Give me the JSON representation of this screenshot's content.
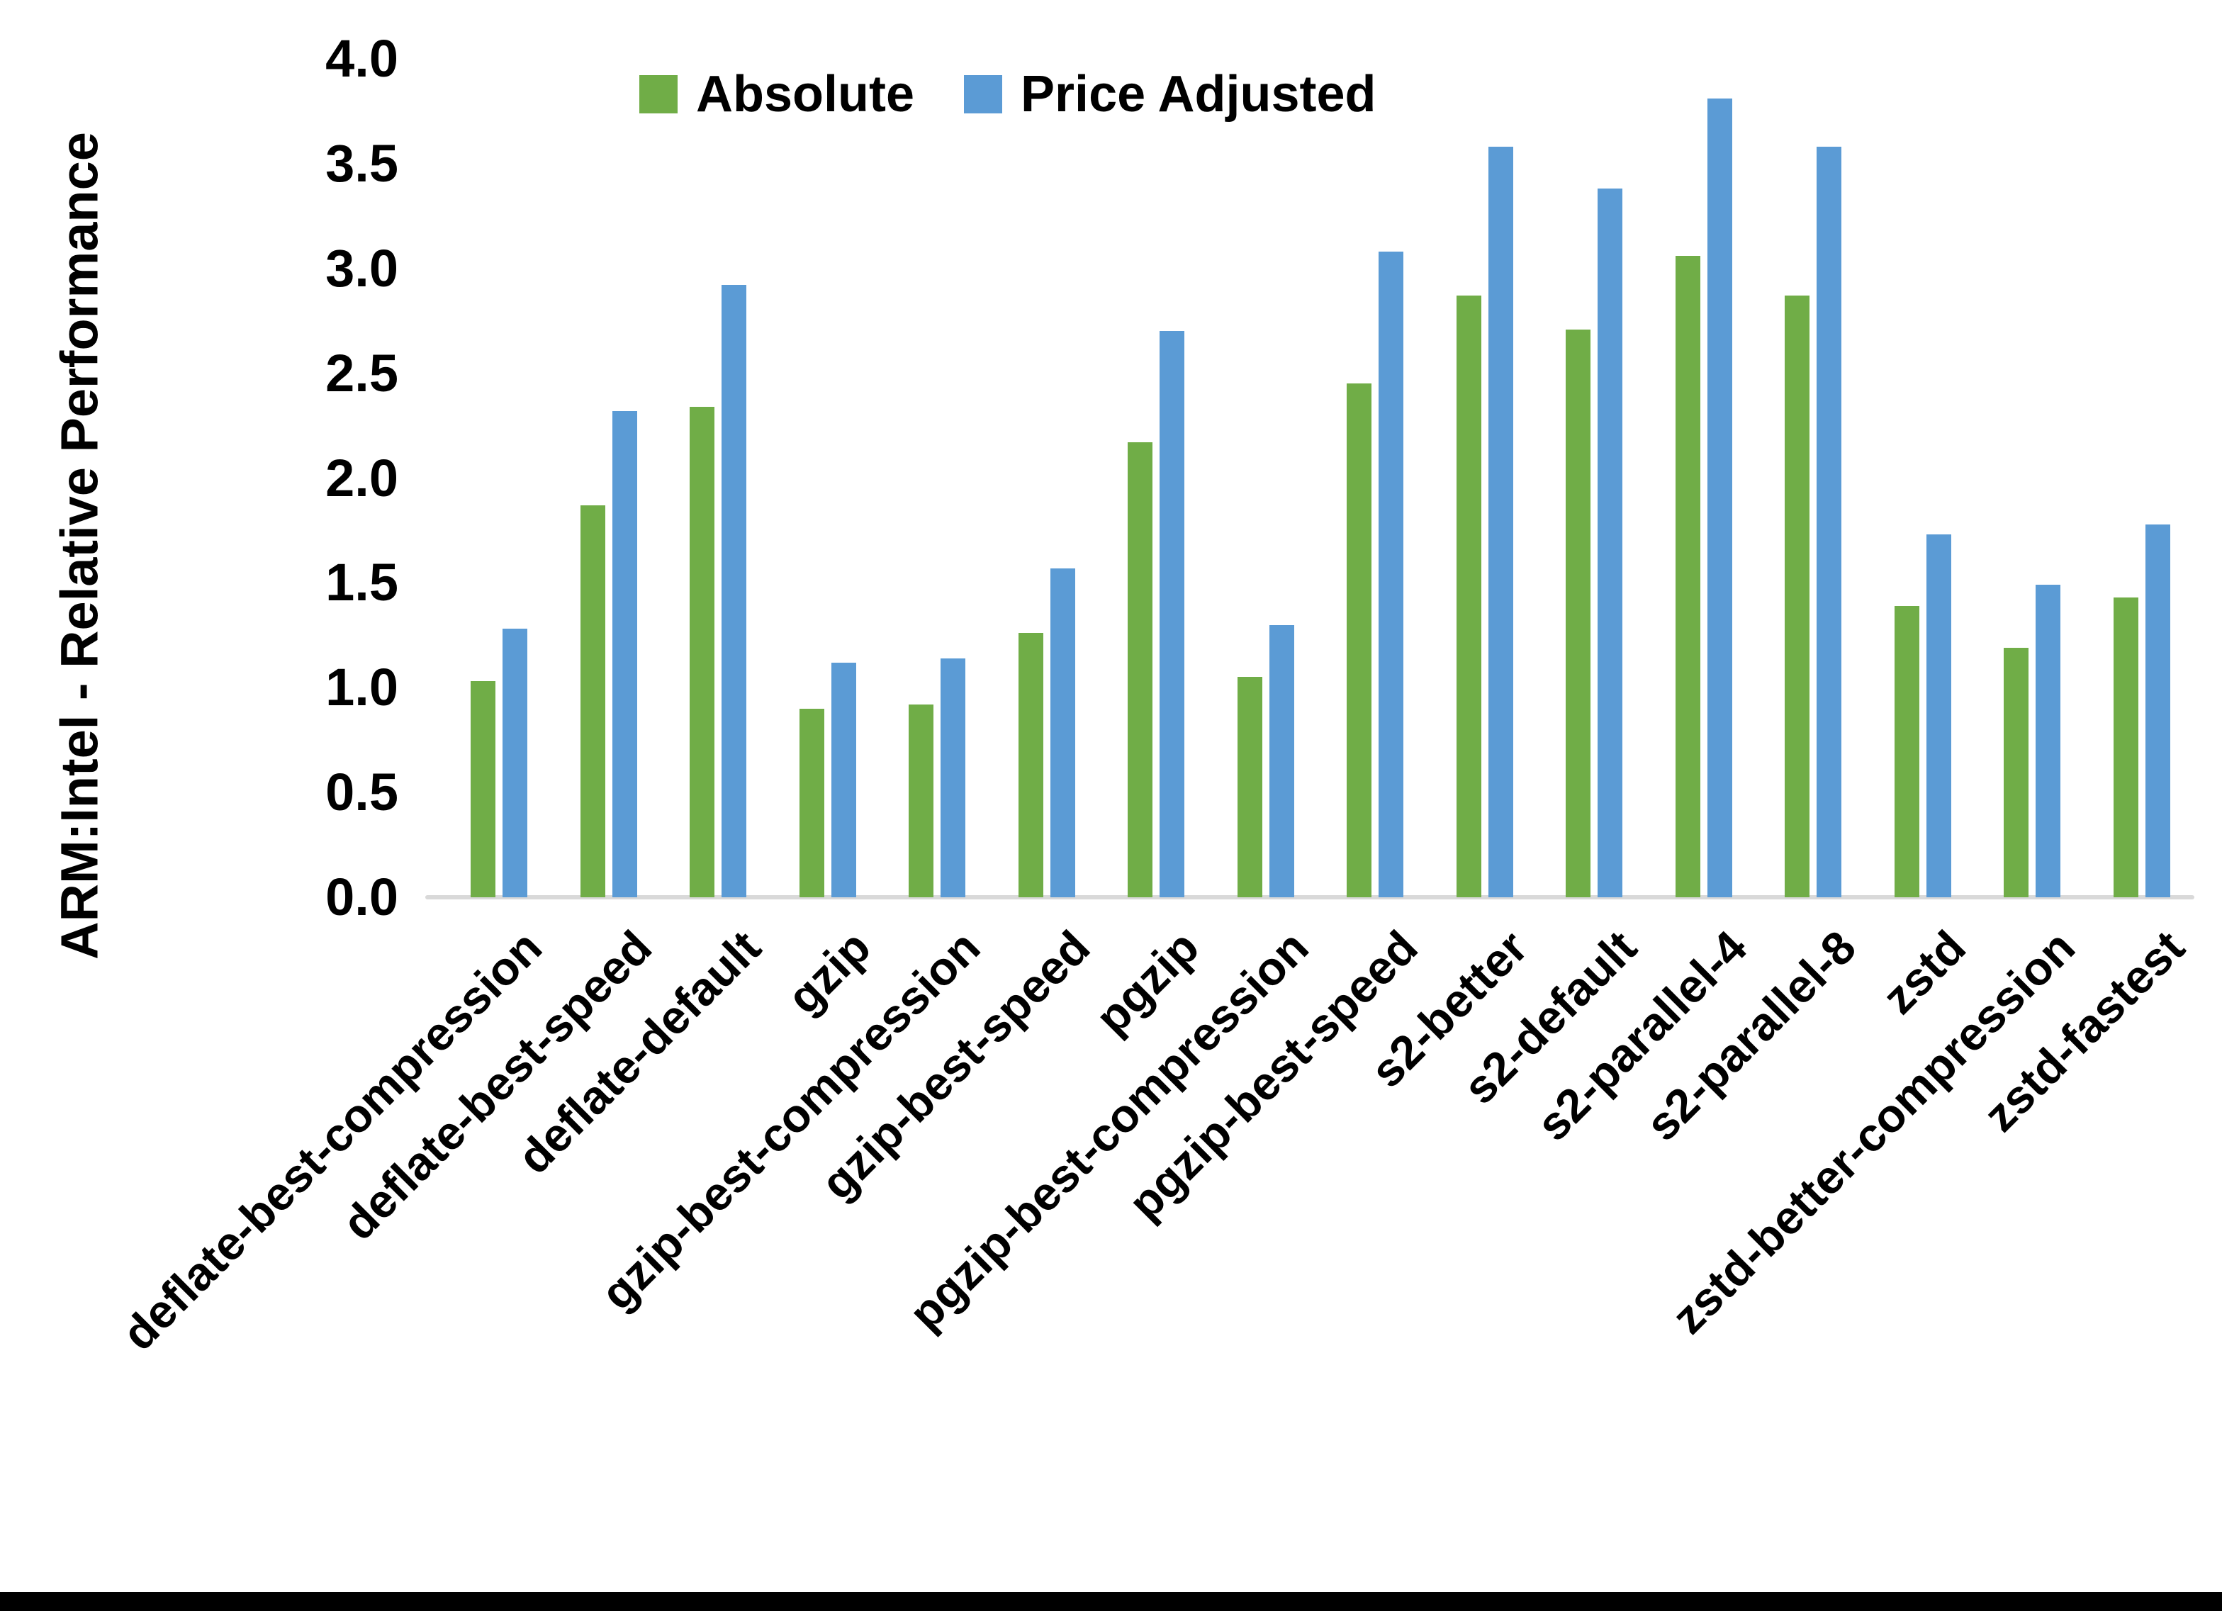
{
  "chart_data": {
    "type": "bar",
    "title": "",
    "xlabel": "",
    "ylabel": "ARM:Intel - Relative Performance",
    "ylim": [
      0,
      4.0
    ],
    "ytick_step": 0.5,
    "ytick_labels": [
      "0.0",
      "0.5",
      "1.0",
      "1.5",
      "2.0",
      "2.5",
      "3.0",
      "3.5",
      "4.0"
    ],
    "grid": false,
    "legend_position": "top-center",
    "categories": [
      "deflate-best-compression",
      "deflate-best-speed",
      "deflate-default",
      "gzip",
      "gzip-best-compression",
      "gzip-best-speed",
      "pgzip",
      "pgzip-best-compression",
      "pgzip-best-speed",
      "s2-better",
      "s2-default",
      "s2-parallel-4",
      "s2-parallel-8",
      "zstd",
      "zstd-better-compression",
      "zstd-fastest"
    ],
    "series": [
      {
        "name": "Absolute",
        "color": "#70AD47",
        "values": [
          1.03,
          1.87,
          2.34,
          0.9,
          0.92,
          1.26,
          2.17,
          1.05,
          2.45,
          2.87,
          2.71,
          3.06,
          2.87,
          1.39,
          1.19,
          1.43
        ]
      },
      {
        "name": "Price Adjusted",
        "color": "#5B9BD5",
        "values": [
          1.28,
          2.32,
          2.92,
          1.12,
          1.14,
          1.57,
          2.7,
          1.3,
          3.08,
          3.58,
          3.38,
          3.81,
          3.58,
          1.73,
          1.49,
          1.78
        ]
      }
    ]
  },
  "colors": {
    "background": "#FFFFFF",
    "axis_line": "#D9D9D9",
    "text": "#000000",
    "bottom_border": "#000000"
  }
}
